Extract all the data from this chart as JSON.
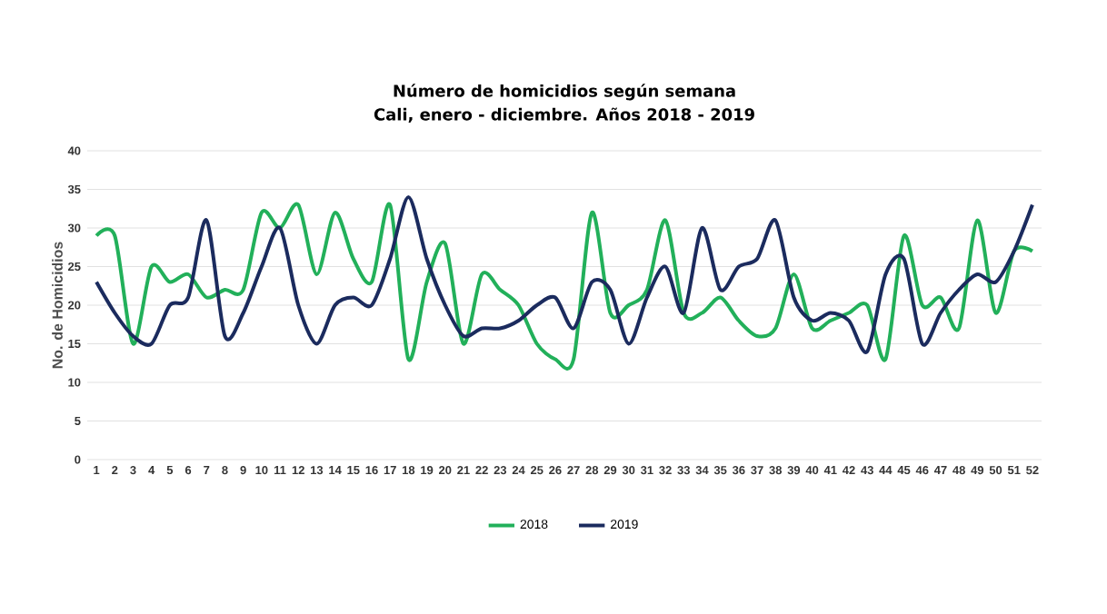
{
  "chart_data": {
    "type": "line",
    "title": "Número de homicidios según semana",
    "subtitle": "Cali, enero - diciembre. Años 2018 - 2019",
    "ylabel": "No. de Homicidios",
    "categories": [
      "1",
      "2",
      "3",
      "4",
      "5",
      "6",
      "7",
      "8",
      "9",
      "10",
      "11",
      "12",
      "13",
      "14",
      "15",
      "16",
      "17",
      "18",
      "19",
      "20",
      "21",
      "22",
      "23",
      "24",
      "25",
      "26",
      "27",
      "28",
      "29",
      "30",
      "31",
      "32",
      "33",
      "34",
      "35",
      "36",
      "37",
      "38",
      "39",
      "40",
      "41",
      "42",
      "43",
      "44",
      "45",
      "46",
      "47",
      "48",
      "49",
      "50",
      "51",
      "52"
    ],
    "series": [
      {
        "name": "2018",
        "color": "#22b05a",
        "values": [
          29,
          29,
          15,
          25,
          23,
          24,
          21,
          22,
          22,
          32,
          30,
          33,
          24,
          32,
          26,
          23,
          33,
          13,
          23,
          28,
          15,
          24,
          22,
          20,
          15,
          13,
          13,
          32,
          19,
          20,
          22,
          31,
          19,
          19,
          21,
          18,
          16,
          17,
          24,
          17,
          18,
          19,
          20,
          13,
          29,
          20,
          21,
          17,
          31,
          19,
          27,
          27
        ]
      },
      {
        "name": "2019",
        "color": "#1b2b5e",
        "values": [
          23,
          19,
          16,
          15,
          20,
          21,
          31,
          16,
          19,
          25,
          30,
          20,
          15,
          20,
          21,
          20,
          26,
          34,
          26,
          20,
          16,
          17,
          17,
          18,
          20,
          21,
          17,
          23,
          22,
          15,
          21,
          25,
          19,
          30,
          22,
          25,
          26,
          31,
          21,
          18,
          19,
          18,
          14,
          24,
          26,
          15,
          19,
          22,
          24,
          23,
          27,
          33
        ]
      }
    ],
    "ylim": [
      0,
      40
    ],
    "yticks": [
      0,
      5,
      10,
      15,
      20,
      25,
      30,
      35,
      40
    ],
    "grid": "y",
    "legend": "bottom",
    "marker": "none",
    "line_style": "solid"
  }
}
